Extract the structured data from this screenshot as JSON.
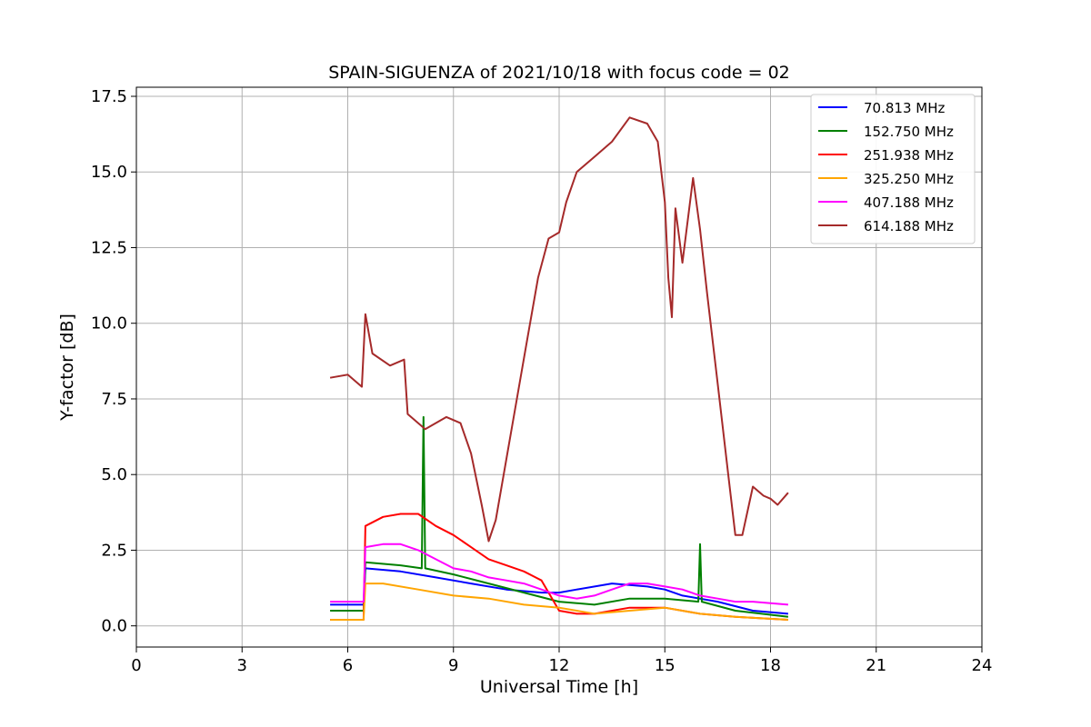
{
  "chart_data": {
    "type": "line",
    "title": "SPAIN-SIGUENZA of 2021/10/18 with focus code = 02",
    "xlabel": "Universal Time [h]",
    "ylabel": "Y-factor [dB]",
    "xlim": [
      0,
      24
    ],
    "ylim": [
      -0.7,
      17.8
    ],
    "xticks": [
      0,
      3,
      6,
      9,
      12,
      15,
      18,
      21,
      24
    ],
    "yticks": [
      0.0,
      2.5,
      5.0,
      7.5,
      10.0,
      12.5,
      15.0,
      17.5
    ],
    "xtick_labels": [
      "0",
      "3",
      "6",
      "9",
      "12",
      "15",
      "18",
      "21",
      "24"
    ],
    "ytick_labels": [
      "0.0",
      "2.5",
      "5.0",
      "7.5",
      "10.0",
      "12.5",
      "15.0",
      "17.5"
    ],
    "grid": true,
    "legend_position": "top-right",
    "series": [
      {
        "name": " 70.813 MHz",
        "color": "#0000ff",
        "points": [
          [
            5.5,
            0.7
          ],
          [
            6.45,
            0.7
          ],
          [
            6.5,
            1.9
          ],
          [
            7.5,
            1.8
          ],
          [
            8.5,
            1.6
          ],
          [
            9.5,
            1.4
          ],
          [
            10.5,
            1.2
          ],
          [
            11.5,
            1.1
          ],
          [
            12.0,
            1.1
          ],
          [
            12.5,
            1.2
          ],
          [
            13.5,
            1.4
          ],
          [
            14.5,
            1.3
          ],
          [
            15.0,
            1.2
          ],
          [
            15.5,
            1.0
          ],
          [
            16.5,
            0.8
          ],
          [
            17.5,
            0.5
          ],
          [
            18.5,
            0.4
          ]
        ]
      },
      {
        "name": "152.750 MHz",
        "color": "#008000",
        "points": [
          [
            5.5,
            0.5
          ],
          [
            6.45,
            0.5
          ],
          [
            6.5,
            2.1
          ],
          [
            7.5,
            2.0
          ],
          [
            8.1,
            1.9
          ],
          [
            8.15,
            6.9
          ],
          [
            8.2,
            1.9
          ],
          [
            9.0,
            1.7
          ],
          [
            10.0,
            1.4
          ],
          [
            11.0,
            1.1
          ],
          [
            12.0,
            0.8
          ],
          [
            13.0,
            0.7
          ],
          [
            14.0,
            0.9
          ],
          [
            15.0,
            0.9
          ],
          [
            15.95,
            0.8
          ],
          [
            16.0,
            2.7
          ],
          [
            16.05,
            0.8
          ],
          [
            17.0,
            0.5
          ],
          [
            18.5,
            0.3
          ]
        ]
      },
      {
        "name": "251.938 MHz",
        "color": "#ff0000",
        "points": [
          [
            5.5,
            0.2
          ],
          [
            6.45,
            0.2
          ],
          [
            6.5,
            3.3
          ],
          [
            7.0,
            3.6
          ],
          [
            7.5,
            3.7
          ],
          [
            8.0,
            3.7
          ],
          [
            8.5,
            3.3
          ],
          [
            9.0,
            3.0
          ],
          [
            9.5,
            2.6
          ],
          [
            10.0,
            2.2
          ],
          [
            10.5,
            2.0
          ],
          [
            11.0,
            1.8
          ],
          [
            11.5,
            1.5
          ],
          [
            12.0,
            0.5
          ],
          [
            12.5,
            0.4
          ],
          [
            13.0,
            0.4
          ],
          [
            14.0,
            0.6
          ],
          [
            15.0,
            0.6
          ],
          [
            16.0,
            0.4
          ],
          [
            17.0,
            0.3
          ],
          [
            18.5,
            0.2
          ]
        ]
      },
      {
        "name": "325.250 MHz",
        "color": "#ffa500",
        "points": [
          [
            5.5,
            0.2
          ],
          [
            6.45,
            0.2
          ],
          [
            6.5,
            1.4
          ],
          [
            7.0,
            1.4
          ],
          [
            8.0,
            1.2
          ],
          [
            9.0,
            1.0
          ],
          [
            10.0,
            0.9
          ],
          [
            11.0,
            0.7
          ],
          [
            12.0,
            0.6
          ],
          [
            13.0,
            0.4
          ],
          [
            14.0,
            0.5
          ],
          [
            15.0,
            0.6
          ],
          [
            16.0,
            0.4
          ],
          [
            17.0,
            0.3
          ],
          [
            18.5,
            0.2
          ]
        ]
      },
      {
        "name": "407.188 MHz",
        "color": "#ff00ff",
        "points": [
          [
            5.5,
            0.8
          ],
          [
            6.45,
            0.8
          ],
          [
            6.5,
            2.6
          ],
          [
            7.0,
            2.7
          ],
          [
            7.5,
            2.7
          ],
          [
            8.0,
            2.5
          ],
          [
            8.5,
            2.2
          ],
          [
            9.0,
            1.9
          ],
          [
            9.5,
            1.8
          ],
          [
            10.0,
            1.6
          ],
          [
            10.5,
            1.5
          ],
          [
            11.0,
            1.4
          ],
          [
            11.5,
            1.2
          ],
          [
            12.0,
            1.0
          ],
          [
            12.5,
            0.9
          ],
          [
            13.0,
            1.0
          ],
          [
            13.5,
            1.2
          ],
          [
            14.0,
            1.4
          ],
          [
            14.5,
            1.4
          ],
          [
            15.0,
            1.3
          ],
          [
            15.5,
            1.2
          ],
          [
            16.0,
            1.0
          ],
          [
            16.5,
            0.9
          ],
          [
            17.0,
            0.8
          ],
          [
            17.5,
            0.8
          ],
          [
            18.5,
            0.7
          ]
        ]
      },
      {
        "name": "614.188 MHz",
        "color": "#a52a2a",
        "points": [
          [
            5.5,
            8.2
          ],
          [
            6.0,
            8.3
          ],
          [
            6.4,
            7.9
          ],
          [
            6.5,
            10.3
          ],
          [
            6.7,
            9.0
          ],
          [
            7.2,
            8.6
          ],
          [
            7.6,
            8.8
          ],
          [
            7.7,
            7.0
          ],
          [
            8.2,
            6.5
          ],
          [
            8.8,
            6.9
          ],
          [
            9.2,
            6.7
          ],
          [
            9.5,
            5.7
          ],
          [
            9.8,
            4.0
          ],
          [
            10.0,
            2.8
          ],
          [
            10.2,
            3.5
          ],
          [
            10.5,
            5.5
          ],
          [
            10.8,
            7.5
          ],
          [
            11.1,
            9.5
          ],
          [
            11.4,
            11.5
          ],
          [
            11.7,
            12.8
          ],
          [
            12.0,
            13.0
          ],
          [
            12.2,
            14.0
          ],
          [
            12.5,
            15.0
          ],
          [
            13.0,
            15.5
          ],
          [
            13.5,
            16.0
          ],
          [
            14.0,
            16.8
          ],
          [
            14.5,
            16.6
          ],
          [
            14.8,
            16.0
          ],
          [
            15.0,
            14.0
          ],
          [
            15.1,
            11.5
          ],
          [
            15.2,
            10.2
          ],
          [
            15.3,
            13.8
          ],
          [
            15.5,
            12.0
          ],
          [
            15.8,
            14.8
          ],
          [
            16.0,
            13.1
          ],
          [
            16.2,
            11.0
          ],
          [
            16.5,
            8.0
          ],
          [
            16.8,
            5.0
          ],
          [
            17.0,
            3.0
          ],
          [
            17.2,
            3.0
          ],
          [
            17.5,
            4.6
          ],
          [
            17.8,
            4.3
          ],
          [
            18.0,
            4.2
          ],
          [
            18.2,
            4.0
          ],
          [
            18.5,
            4.4
          ]
        ]
      }
    ]
  }
}
